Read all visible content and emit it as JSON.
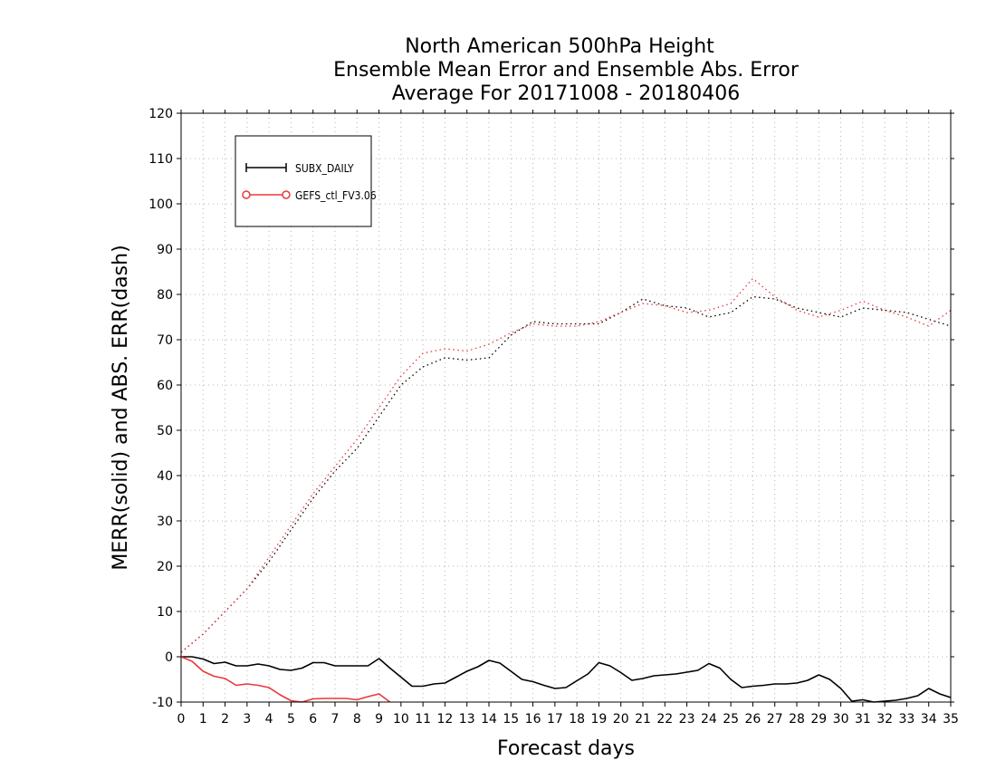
{
  "chart_data": {
    "type": "line",
    "title_lines": [
      "North American 500hPa Height",
      "Ensemble Mean Error and Ensemble Abs. Error",
      "Average For 20171008 - 20180406"
    ],
    "xlabel": "Forecast days",
    "ylabel": "MERR(solid) and ABS. ERR(dash)",
    "xlim": [
      0,
      35
    ],
    "ylim": [
      -10,
      120
    ],
    "x_ticks": [
      0,
      1,
      2,
      3,
      4,
      5,
      6,
      7,
      8,
      9,
      10,
      11,
      12,
      13,
      14,
      15,
      16,
      17,
      18,
      19,
      20,
      21,
      22,
      23,
      24,
      25,
      26,
      27,
      28,
      29,
      30,
      31,
      32,
      33,
      34,
      35
    ],
    "y_ticks": [
      -10,
      0,
      10,
      20,
      30,
      40,
      50,
      60,
      70,
      80,
      90,
      100,
      110,
      120
    ],
    "grid": true,
    "legend_placement": "top-left",
    "legend": [
      {
        "label": "SUBX_DAILY",
        "color": "#000000",
        "marker": "plus"
      },
      {
        "label": "GEFS_ctl_FV3.06",
        "color": "#e8383b",
        "marker": "circle"
      }
    ],
    "series": [
      {
        "name": "SUBX_DAILY",
        "metric": "MERR",
        "style": "solid",
        "color": "#000000",
        "x": [
          0,
          0.5,
          1,
          1.5,
          2,
          2.5,
          3,
          3.5,
          4,
          4.5,
          5,
          5.5,
          6,
          6.5,
          7,
          7.5,
          8,
          8.5,
          9,
          9.5,
          10,
          10.5,
          11,
          11.5,
          12,
          12.5,
          13,
          13.5,
          14,
          14.5,
          15,
          15.5,
          16,
          16.5,
          17,
          17.5,
          18,
          18.5,
          19,
          19.5,
          20,
          20.5,
          21,
          21.5,
          22,
          22.5,
          23,
          23.5,
          24,
          24.5,
          25,
          25.5,
          26,
          26.5,
          27,
          27.5,
          28,
          28.5,
          29,
          29.5,
          30,
          30.5,
          31,
          31.5,
          32,
          32.5,
          33,
          33.5,
          34,
          34.5,
          35
        ],
        "y": [
          0,
          0,
          -0.5,
          -1.5,
          -1.2,
          -2,
          -2,
          -1.6,
          -2,
          -2.8,
          -3,
          -2.5,
          -1.3,
          -1.3,
          -2,
          -2,
          -2,
          -2,
          -0.4,
          -2.5,
          -4.5,
          -6.5,
          -6.5,
          -6,
          -5.8,
          -4.5,
          -3.2,
          -2.2,
          -0.8,
          -1.4,
          -3.2,
          -5,
          -5.5,
          -6.3,
          -7,
          -6.8,
          -5.3,
          -3.8,
          -1.3,
          -2,
          -3.5,
          -5.2,
          -4.8,
          -4.2,
          -4,
          -3.8,
          -3.4,
          -3,
          -1.5,
          -2.5,
          -5,
          -6.8,
          -6.5,
          -6.3,
          -6,
          -6,
          -5.8,
          -5.2,
          -4,
          -5,
          -7,
          -9.8,
          -9.5,
          -10,
          -9.8,
          -9.6,
          -9.2,
          -8.6,
          -7,
          -8.2,
          -9
        ]
      },
      {
        "name": "GEFS_ctl_FV3.06",
        "metric": "MERR",
        "style": "solid",
        "color": "#e8383b",
        "x": [
          0,
          0.5,
          1,
          1.5,
          2,
          2.5,
          3,
          3.5,
          4,
          4.5,
          5,
          5.5,
          6,
          6.5,
          7,
          7.5,
          8,
          8.5,
          9,
          9.5
        ],
        "y": [
          0,
          -1,
          -3.2,
          -4.3,
          -4.8,
          -6.3,
          -6,
          -6.3,
          -6.8,
          -8.4,
          -9.7,
          -10,
          -9.3,
          -9.2,
          -9.2,
          -9.2,
          -9.5,
          -8.8,
          -8.2,
          -10
        ]
      },
      {
        "name": "SUBX_DAILY",
        "metric": "ABS. ERR",
        "style": "dash",
        "color": "#000000",
        "x": [
          0,
          1,
          2,
          3,
          4,
          5,
          6,
          7,
          8,
          9,
          10,
          11,
          12,
          13,
          14,
          15,
          16,
          17,
          18,
          19,
          20,
          21,
          22,
          23,
          24,
          25,
          26,
          27,
          28,
          29,
          30,
          31,
          32,
          33,
          34,
          35
        ],
        "y": [
          1,
          5,
          10,
          15,
          21,
          28,
          35,
          41,
          46,
          53,
          60,
          64,
          66,
          65.5,
          66,
          71,
          74,
          73.5,
          73.5,
          73.5,
          76,
          79,
          77.5,
          77,
          75,
          76,
          79.5,
          79,
          77,
          76,
          75,
          77,
          76.5,
          76,
          74.5,
          73
        ]
      },
      {
        "name": "GEFS_ctl_FV3.06",
        "metric": "ABS. ERR",
        "style": "dash",
        "color": "#e8383b",
        "x": [
          0,
          1,
          2,
          3,
          4,
          5,
          6,
          7,
          8,
          9,
          10,
          11,
          12,
          13,
          14,
          15,
          16,
          17,
          18,
          19,
          20,
          21,
          22,
          23,
          24,
          25,
          26,
          27,
          28,
          29,
          30,
          31,
          32,
          33,
          34,
          35
        ],
        "y": [
          1,
          5,
          10,
          15,
          22,
          29,
          36,
          42,
          48,
          55,
          62,
          67,
          68,
          67.5,
          69,
          71.5,
          73.5,
          73,
          73,
          74,
          76,
          78,
          77.5,
          76,
          76.5,
          78,
          83.5,
          79.5,
          76.5,
          75,
          76.5,
          78.5,
          76.5,
          75,
          73,
          76.5
        ]
      }
    ]
  }
}
